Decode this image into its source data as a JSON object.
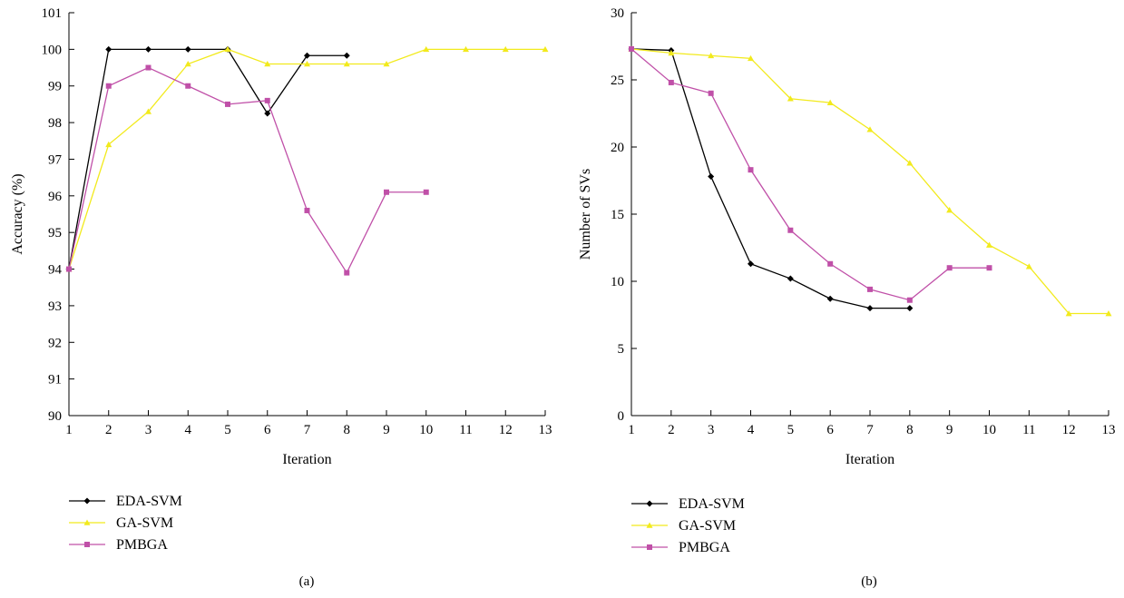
{
  "chart_data": [
    {
      "type": "line",
      "panel_label": "(a)",
      "xlabel": "Iteration",
      "ylabel": "Accuracy (%)",
      "xlim": [
        1,
        13
      ],
      "ylim": [
        90,
        101
      ],
      "x_ticks": [
        "1",
        "2",
        "3",
        "4",
        "5",
        "6",
        "7",
        "8",
        "9",
        "10",
        "11",
        "12",
        "13"
      ],
      "y_ticks": [
        "90",
        "91",
        "92",
        "93",
        "94",
        "95",
        "96",
        "97",
        "98",
        "99",
        "100",
        "101"
      ],
      "series": [
        {
          "name": "EDA-SVM",
          "color": "#000000",
          "marker": "diamond",
          "x": [
            1,
            2,
            3,
            4,
            5,
            6,
            7,
            8
          ],
          "y": [
            94,
            100,
            100,
            100,
            100,
            98.25,
            99.83,
            99.83
          ]
        },
        {
          "name": "GA-SVM",
          "color": "#f2ea1c",
          "marker": "triangle",
          "x": [
            1,
            2,
            3,
            4,
            5,
            6,
            7,
            8,
            9,
            10,
            11,
            12,
            13
          ],
          "y": [
            94,
            97.4,
            98.3,
            99.6,
            100,
            99.6,
            99.6,
            99.6,
            99.6,
            100,
            100,
            100,
            100
          ]
        },
        {
          "name": "PMBGA",
          "color": "#c050a8",
          "marker": "square",
          "x": [
            1,
            2,
            3,
            4,
            5,
            6,
            7,
            8,
            9,
            10
          ],
          "y": [
            94,
            99,
            99.5,
            99,
            98.5,
            98.6,
            95.6,
            93.9,
            96.1,
            96.1
          ]
        }
      ]
    },
    {
      "type": "line",
      "panel_label": "(b)",
      "xlabel": "Iteration",
      "ylabel": "Number of SVs",
      "xlim": [
        1,
        13
      ],
      "ylim": [
        0,
        30
      ],
      "x_ticks": [
        "1",
        "2",
        "3",
        "4",
        "5",
        "6",
        "7",
        "8",
        "9",
        "10",
        "11",
        "12",
        "13"
      ],
      "y_ticks": [
        "0",
        "5",
        "10",
        "15",
        "20",
        "25",
        "30"
      ],
      "series": [
        {
          "name": "EDA-SVM",
          "color": "#000000",
          "marker": "diamond",
          "x": [
            1,
            2,
            3,
            4,
            5,
            6,
            7,
            8
          ],
          "y": [
            27.3,
            27.2,
            17.8,
            11.3,
            10.2,
            8.7,
            8.0,
            8.0
          ]
        },
        {
          "name": "GA-SVM",
          "color": "#f2ea1c",
          "marker": "triangle",
          "x": [
            1,
            2,
            3,
            4,
            5,
            6,
            7,
            8,
            9,
            10,
            11,
            12,
            13
          ],
          "y": [
            27.3,
            27.0,
            26.8,
            26.6,
            23.6,
            23.3,
            21.3,
            18.8,
            15.3,
            12.7,
            11.1,
            7.6,
            7.6
          ]
        },
        {
          "name": "PMBGA",
          "color": "#c050a8",
          "marker": "square",
          "x": [
            1,
            2,
            3,
            4,
            5,
            6,
            7,
            8,
            9,
            10
          ],
          "y": [
            27.3,
            24.8,
            24.0,
            18.3,
            13.8,
            11.3,
            9.4,
            8.6,
            11.0,
            11.0
          ]
        }
      ]
    }
  ]
}
